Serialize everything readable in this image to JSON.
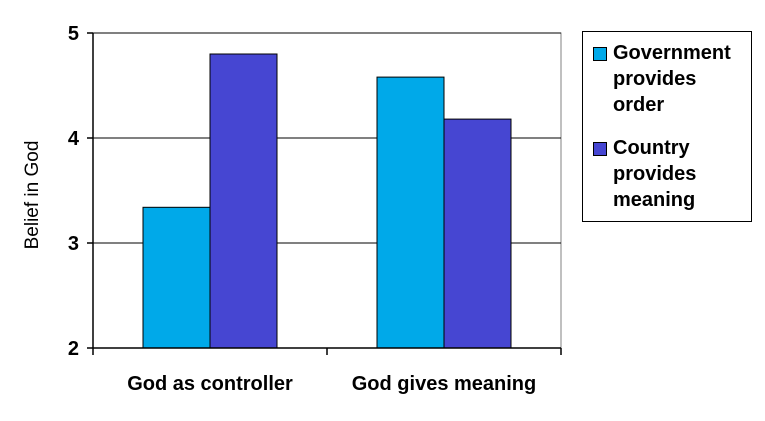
{
  "chart_data": {
    "type": "bar",
    "categories": [
      "God as controller",
      "God gives meaning"
    ],
    "series": [
      {
        "name": "Government provides order",
        "values": [
          3.34,
          4.58
        ],
        "color": "#00a9e9"
      },
      {
        "name": "Country provides meaning",
        "values": [
          4.8,
          4.18
        ],
        "color": "#4646d2"
      }
    ],
    "ylabel": "Belief in God",
    "xlabel": "",
    "ylim": [
      2,
      5
    ],
    "yticks": [
      "2",
      "3",
      "4",
      "5"
    ],
    "grid": true,
    "legend": "right"
  },
  "legend": {
    "items": [
      {
        "lines": [
          "Government",
          "provides",
          "order"
        ]
      },
      {
        "lines": [
          "Country",
          "provides",
          "meaning"
        ]
      }
    ]
  }
}
